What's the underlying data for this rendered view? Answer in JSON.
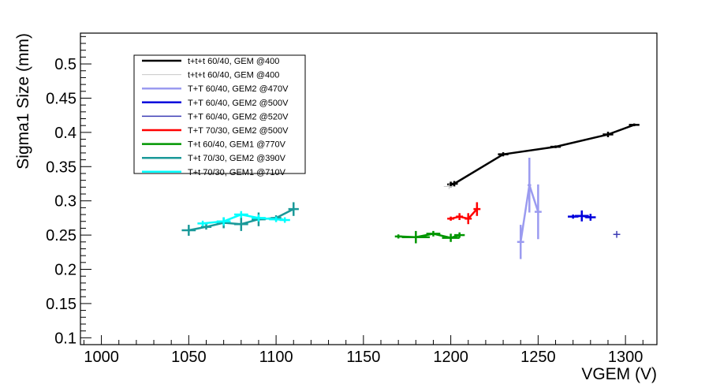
{
  "chart_data": {
    "type": "line",
    "title": "",
    "xlabel": "VGEM (V)",
    "ylabel": "Sigma1 Size (mm)",
    "xlim": [
      988,
      1318
    ],
    "ylim": [
      0.09,
      0.545
    ],
    "x_ticks": [
      "1000",
      "1050",
      "1100",
      "1150",
      "1200",
      "1250",
      "1300"
    ],
    "y_ticks": [
      "0.1",
      "0.15",
      "0.2",
      "0.25",
      "0.3",
      "0.35",
      "0.4",
      "0.45",
      "0.5"
    ],
    "grid": false,
    "legend_position": "top-left",
    "series": [
      {
        "name": "t+t+t 60/40, GEM @400",
        "color": "#000000",
        "width": 2.5,
        "points": [
          [
            1200,
            0.324
          ],
          [
            1202,
            0.325
          ],
          [
            1230,
            0.368
          ],
          [
            1260,
            0.379
          ],
          [
            1290,
            0.397
          ],
          [
            1305,
            0.411
          ]
        ],
        "yerr": [
          0.004,
          0.004,
          0.003,
          0.002,
          0.004,
          0.002
        ],
        "xerr": [
          2,
          2,
          3,
          3,
          3,
          3
        ]
      },
      {
        "name": "t+t+t 60/40, GEM @400",
        "color": "#c8c8c8",
        "width": 1,
        "points": [
          [
            1199,
            0.321
          ]
        ],
        "yerr": [
          0.004
        ],
        "xerr": [
          3
        ]
      },
      {
        "name": "T+T 60/40, GEM2 @470V",
        "color": "#9b9bf0",
        "width": 2.5,
        "points": [
          [
            1240,
            0.24
          ],
          [
            1245,
            0.323
          ],
          [
            1250,
            0.284
          ]
        ],
        "yerr": [
          0.025,
          0.04,
          0.04
        ],
        "xerr": [
          2,
          1,
          2
        ]
      },
      {
        "name": "T+T 60/40, GEM2 @500V",
        "color": "#0000dc",
        "width": 2.5,
        "points": [
          [
            1270,
            0.277
          ],
          [
            1275,
            0.278
          ],
          [
            1280,
            0.276
          ]
        ],
        "yerr": [
          0.003,
          0.008,
          0.005
        ],
        "xerr": [
          3,
          4,
          3
        ]
      },
      {
        "name": "T+T 60/40, GEM2 @520V",
        "color": "#3c3cb4",
        "width": 1.5,
        "points": [
          [
            1295,
            0.251
          ]
        ],
        "yerr": [
          0.005
        ],
        "xerr": [
          2
        ]
      },
      {
        "name": "T+T 70/30, GEM2 @500V",
        "color": "#ff0000",
        "width": 2.5,
        "points": [
          [
            1200,
            0.274
          ],
          [
            1205,
            0.277
          ],
          [
            1210,
            0.274
          ],
          [
            1215,
            0.288
          ]
        ],
        "yerr": [
          0.003,
          0.005,
          0.008,
          0.01
        ],
        "xerr": [
          2,
          2,
          2,
          2
        ]
      },
      {
        "name": "T+t 60/40, GEM1 @770V",
        "color": "#009600",
        "width": 2.5,
        "points": [
          [
            1170,
            0.248
          ],
          [
            1180,
            0.247
          ],
          [
            1190,
            0.252
          ],
          [
            1200,
            0.246
          ],
          [
            1205,
            0.25
          ]
        ],
        "yerr": [
          0.003,
          0.009,
          0.004,
          0.006,
          0.004
        ],
        "xerr": [
          2,
          8,
          4,
          5,
          3
        ]
      },
      {
        "name": "T+t 70/30, GEM2 @390V",
        "color": "#1a9999",
        "width": 2.5,
        "points": [
          [
            1050,
            0.257
          ],
          [
            1060,
            0.262
          ],
          [
            1070,
            0.268
          ],
          [
            1080,
            0.266
          ],
          [
            1090,
            0.273
          ],
          [
            1100,
            0.275
          ],
          [
            1110,
            0.288
          ]
        ],
        "yerr": [
          0.008,
          0.004,
          0.008,
          0.01,
          0.01,
          0.004,
          0.01
        ],
        "xerr": [
          4,
          3,
          4,
          4,
          4,
          3,
          3
        ]
      },
      {
        "name": "T+t 70/30, GEM1 @710V",
        "color": "#00ffff",
        "width": 2.5,
        "points": [
          [
            1058,
            0.267
          ],
          [
            1070,
            0.27
          ],
          [
            1080,
            0.28
          ],
          [
            1090,
            0.275
          ],
          [
            1100,
            0.273
          ],
          [
            1105,
            0.272
          ]
        ],
        "yerr": [
          0.004,
          0.006,
          0.005,
          0.005,
          0.004,
          0.004
        ],
        "xerr": [
          3,
          4,
          4,
          4,
          4,
          3
        ]
      }
    ]
  }
}
